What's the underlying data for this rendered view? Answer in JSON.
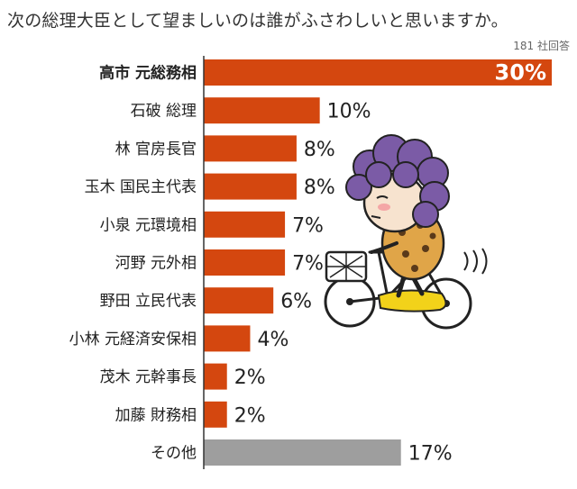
{
  "chart_data": {
    "type": "bar",
    "orientation": "horizontal",
    "title": "次の総理大臣として望ましいのは誰がふさわしいと思いますか。",
    "note": "181 社回答",
    "categories": [
      "高市 元総務相",
      "石破 総理",
      "林 官房長官",
      "玉木 国民主代表",
      "小泉 元環境相",
      "河野 元外相",
      "野田 立民代表",
      "小林 元経済安保相",
      "茂木 元幹事長",
      "加藤 財務相",
      "その他"
    ],
    "values": [
      30,
      10,
      8,
      8,
      7,
      7,
      6,
      4,
      2,
      2,
      17
    ],
    "value_labels": [
      "30%",
      "10%",
      "8%",
      "8%",
      "7%",
      "7%",
      "6%",
      "4%",
      "2%",
      "2%",
      "17%"
    ],
    "bold_category_index": 0,
    "colors": {
      "main": "#D4470F",
      "other": "#9E9E9E"
    },
    "xlim": [
      0,
      30
    ],
    "grid": false,
    "legend": "none"
  }
}
